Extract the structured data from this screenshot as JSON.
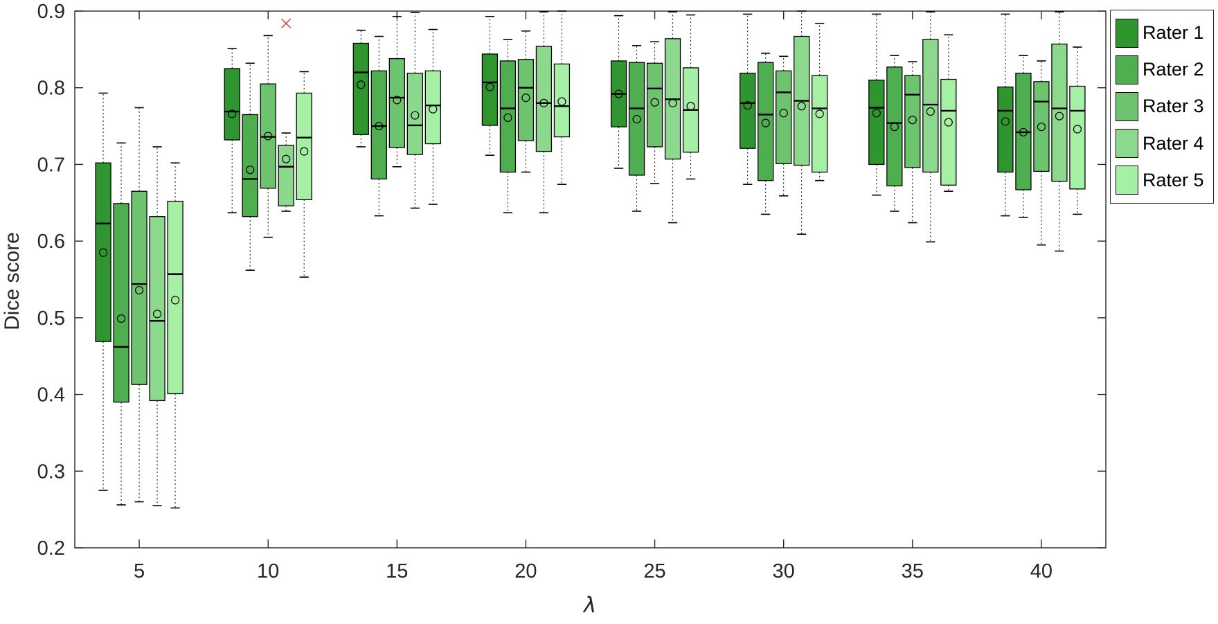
{
  "chart_data": {
    "type": "box",
    "title": "",
    "xlabel": "λ",
    "ylabel": "Dice score",
    "xlim": [
      2.5,
      42.5
    ],
    "ylim": [
      0.2,
      0.9
    ],
    "x_ticks": [
      5,
      10,
      15,
      20,
      25,
      30,
      35,
      40
    ],
    "y_ticks": [
      0.2,
      0.3,
      0.4,
      0.5,
      0.6,
      0.7,
      0.8,
      0.9
    ],
    "grid": false,
    "legend_position": "outside-top-right",
    "axis_color": "#262626",
    "outlier_color": "#e03030",
    "outlier_marker": "x",
    "mean_marker": "o",
    "categories": [
      5,
      10,
      15,
      20,
      25,
      30,
      35,
      40
    ],
    "series": [
      {
        "name": "Rater 1",
        "color": "#2f962f",
        "boxes": [
          {
            "whislo": 0.275,
            "q1": 0.469,
            "med": 0.623,
            "mean": 0.585,
            "q3": 0.702,
            "whishi": 0.793,
            "outliers": []
          },
          {
            "whislo": 0.637,
            "q1": 0.732,
            "med": 0.769,
            "mean": 0.766,
            "q3": 0.825,
            "whishi": 0.851,
            "outliers": []
          },
          {
            "whislo": 0.723,
            "q1": 0.739,
            "med": 0.82,
            "mean": 0.804,
            "q3": 0.858,
            "whishi": 0.875,
            "outliers": []
          },
          {
            "whislo": 0.712,
            "q1": 0.751,
            "med": 0.807,
            "mean": 0.801,
            "q3": 0.844,
            "whishi": 0.893,
            "outliers": []
          },
          {
            "whislo": 0.695,
            "q1": 0.749,
            "med": 0.792,
            "mean": 0.792,
            "q3": 0.835,
            "whishi": 0.894,
            "outliers": []
          },
          {
            "whislo": 0.674,
            "q1": 0.721,
            "med": 0.78,
            "mean": 0.777,
            "q3": 0.819,
            "whishi": 0.896,
            "outliers": []
          },
          {
            "whislo": 0.66,
            "q1": 0.7,
            "med": 0.774,
            "mean": 0.767,
            "q3": 0.81,
            "whishi": 0.896,
            "outliers": []
          },
          {
            "whislo": 0.633,
            "q1": 0.69,
            "med": 0.77,
            "mean": 0.756,
            "q3": 0.801,
            "whishi": 0.896,
            "outliers": []
          }
        ]
      },
      {
        "name": "Rater 2",
        "color": "#4fae4f",
        "boxes": [
          {
            "whislo": 0.256,
            "q1": 0.39,
            "med": 0.462,
            "mean": 0.499,
            "q3": 0.649,
            "whishi": 0.728,
            "outliers": []
          },
          {
            "whislo": 0.562,
            "q1": 0.632,
            "med": 0.681,
            "mean": 0.693,
            "q3": 0.765,
            "whishi": 0.832,
            "outliers": []
          },
          {
            "whislo": 0.633,
            "q1": 0.681,
            "med": 0.75,
            "mean": 0.75,
            "q3": 0.822,
            "whishi": 0.867,
            "outliers": []
          },
          {
            "whislo": 0.637,
            "q1": 0.69,
            "med": 0.773,
            "mean": 0.761,
            "q3": 0.835,
            "whishi": 0.863,
            "outliers": []
          },
          {
            "whislo": 0.639,
            "q1": 0.686,
            "med": 0.773,
            "mean": 0.759,
            "q3": 0.833,
            "whishi": 0.855,
            "outliers": []
          },
          {
            "whislo": 0.635,
            "q1": 0.679,
            "med": 0.765,
            "mean": 0.754,
            "q3": 0.833,
            "whishi": 0.845,
            "outliers": []
          },
          {
            "whislo": 0.639,
            "q1": 0.672,
            "med": 0.754,
            "mean": 0.749,
            "q3": 0.827,
            "whishi": 0.842,
            "outliers": []
          },
          {
            "whislo": 0.631,
            "q1": 0.667,
            "med": 0.742,
            "mean": 0.742,
            "q3": 0.819,
            "whishi": 0.842,
            "outliers": []
          }
        ]
      },
      {
        "name": "Rater 3",
        "color": "#6ec46e",
        "boxes": [
          {
            "whislo": 0.26,
            "q1": 0.413,
            "med": 0.544,
            "mean": 0.536,
            "q3": 0.665,
            "whishi": 0.774,
            "outliers": []
          },
          {
            "whislo": 0.605,
            "q1": 0.669,
            "med": 0.736,
            "mean": 0.737,
            "q3": 0.805,
            "whishi": 0.868,
            "outliers": []
          },
          {
            "whislo": 0.697,
            "q1": 0.722,
            "med": 0.787,
            "mean": 0.784,
            "q3": 0.838,
            "whishi": 0.893,
            "outliers": []
          },
          {
            "whislo": 0.69,
            "q1": 0.731,
            "med": 0.8,
            "mean": 0.787,
            "q3": 0.837,
            "whishi": 0.874,
            "outliers": []
          },
          {
            "whislo": 0.675,
            "q1": 0.723,
            "med": 0.799,
            "mean": 0.781,
            "q3": 0.832,
            "whishi": 0.86,
            "outliers": []
          },
          {
            "whislo": 0.659,
            "q1": 0.701,
            "med": 0.794,
            "mean": 0.767,
            "q3": 0.822,
            "whishi": 0.841,
            "outliers": []
          },
          {
            "whislo": 0.624,
            "q1": 0.696,
            "med": 0.791,
            "mean": 0.758,
            "q3": 0.816,
            "whishi": 0.834,
            "outliers": []
          },
          {
            "whislo": 0.595,
            "q1": 0.691,
            "med": 0.782,
            "mean": 0.749,
            "q3": 0.808,
            "whishi": 0.835,
            "outliers": []
          }
        ]
      },
      {
        "name": "Rater 4",
        "color": "#8cd88c",
        "boxes": [
          {
            "whislo": 0.255,
            "q1": 0.392,
            "med": 0.496,
            "mean": 0.505,
            "q3": 0.632,
            "whishi": 0.723,
            "outliers": []
          },
          {
            "whislo": 0.639,
            "q1": 0.646,
            "med": 0.697,
            "mean": 0.707,
            "q3": 0.725,
            "whishi": 0.741,
            "outliers": [
              0.884
            ]
          },
          {
            "whislo": 0.643,
            "q1": 0.713,
            "med": 0.751,
            "mean": 0.764,
            "q3": 0.819,
            "whishi": 0.898,
            "outliers": []
          },
          {
            "whislo": 0.637,
            "q1": 0.717,
            "med": 0.78,
            "mean": 0.78,
            "q3": 0.854,
            "whishi": 0.899,
            "outliers": []
          },
          {
            "whislo": 0.624,
            "q1": 0.707,
            "med": 0.785,
            "mean": 0.78,
            "q3": 0.864,
            "whishi": 0.899,
            "outliers": []
          },
          {
            "whislo": 0.609,
            "q1": 0.699,
            "med": 0.783,
            "mean": 0.776,
            "q3": 0.867,
            "whishi": 0.9,
            "outliers": []
          },
          {
            "whislo": 0.599,
            "q1": 0.69,
            "med": 0.778,
            "mean": 0.769,
            "q3": 0.863,
            "whishi": 0.899,
            "outliers": []
          },
          {
            "whislo": 0.587,
            "q1": 0.678,
            "med": 0.773,
            "mean": 0.763,
            "q3": 0.857,
            "whishi": 0.899,
            "outliers": []
          }
        ]
      },
      {
        "name": "Rater 5",
        "color": "#a5f0a5",
        "boxes": [
          {
            "whislo": 0.252,
            "q1": 0.401,
            "med": 0.557,
            "mean": 0.523,
            "q3": 0.652,
            "whishi": 0.702,
            "outliers": []
          },
          {
            "whislo": 0.553,
            "q1": 0.654,
            "med": 0.735,
            "mean": 0.717,
            "q3": 0.793,
            "whishi": 0.821,
            "outliers": []
          },
          {
            "whislo": 0.648,
            "q1": 0.727,
            "med": 0.777,
            "mean": 0.772,
            "q3": 0.822,
            "whishi": 0.876,
            "outliers": []
          },
          {
            "whislo": 0.674,
            "q1": 0.736,
            "med": 0.776,
            "mean": 0.782,
            "q3": 0.831,
            "whishi": 0.9,
            "outliers": []
          },
          {
            "whislo": 0.681,
            "q1": 0.716,
            "med": 0.771,
            "mean": 0.776,
            "q3": 0.826,
            "whishi": 0.895,
            "outliers": []
          },
          {
            "whislo": 0.679,
            "q1": 0.69,
            "med": 0.773,
            "mean": 0.766,
            "q3": 0.816,
            "whishi": 0.884,
            "outliers": []
          },
          {
            "whislo": 0.665,
            "q1": 0.673,
            "med": 0.77,
            "mean": 0.755,
            "q3": 0.811,
            "whishi": 0.869,
            "outliers": []
          },
          {
            "whislo": 0.635,
            "q1": 0.668,
            "med": 0.77,
            "mean": 0.746,
            "q3": 0.802,
            "whishi": 0.853,
            "outliers": []
          }
        ]
      }
    ]
  },
  "legend": {
    "entries": [
      {
        "label": "Rater 1",
        "color": "#2f962f"
      },
      {
        "label": "Rater 2",
        "color": "#4fae4f"
      },
      {
        "label": "Rater 3",
        "color": "#6ec46e"
      },
      {
        "label": "Rater 4",
        "color": "#8cd88c"
      },
      {
        "label": "Rater 5",
        "color": "#a5f0a5"
      }
    ]
  }
}
